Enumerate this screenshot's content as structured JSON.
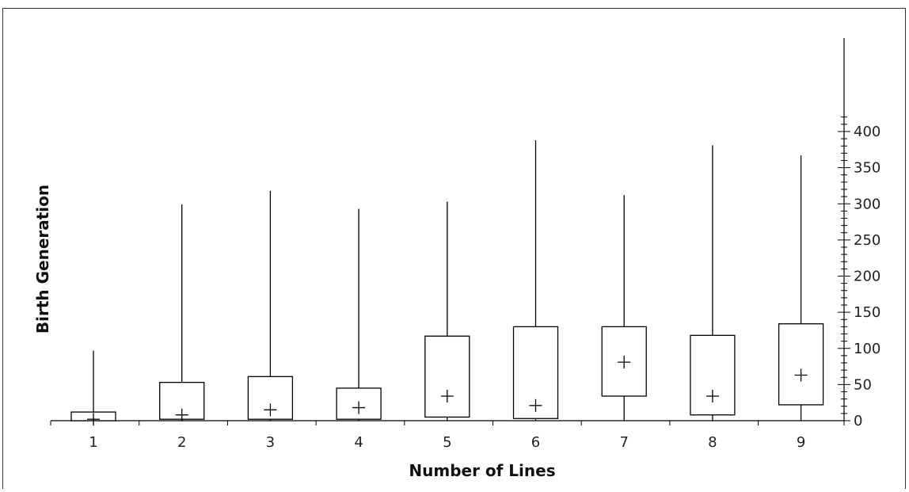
{
  "chart_data": {
    "type": "box",
    "xlabel": "Number of Lines",
    "ylabel": "Birth Generation",
    "categories": [
      "1",
      "2",
      "3",
      "4",
      "5",
      "6",
      "7",
      "8",
      "9"
    ],
    "ylim": [
      0,
      420
    ],
    "yticks": [
      0,
      50,
      100,
      150,
      200,
      250,
      300,
      350,
      400
    ],
    "y_axis_position": "right",
    "grid": false,
    "legend": "none",
    "boxes": [
      {
        "category": "1",
        "min": 0,
        "q1": 0,
        "q3": 12,
        "max": 97,
        "mean": 2
      },
      {
        "category": "2",
        "min": 0,
        "q1": 2,
        "q3": 53,
        "max": 299,
        "mean": 8
      },
      {
        "category": "3",
        "min": 0,
        "q1": 2,
        "q3": 61,
        "max": 318,
        "mean": 15
      },
      {
        "category": "4",
        "min": 0,
        "q1": 2,
        "q3": 45,
        "max": 293,
        "mean": 18
      },
      {
        "category": "5",
        "min": 0,
        "q1": 5,
        "q3": 117,
        "max": 303,
        "mean": 34
      },
      {
        "category": "6",
        "min": 0,
        "q1": 3,
        "q3": 130,
        "max": 388,
        "mean": 21
      },
      {
        "category": "7",
        "min": 0,
        "q1": 34,
        "q3": 130,
        "max": 312,
        "mean": 81
      },
      {
        "category": "8",
        "min": 0,
        "q1": 8,
        "q3": 118,
        "max": 381,
        "mean": 34
      },
      {
        "category": "9",
        "min": 0,
        "q1": 22,
        "q3": 134,
        "max": 367,
        "mean": 63
      }
    ]
  }
}
